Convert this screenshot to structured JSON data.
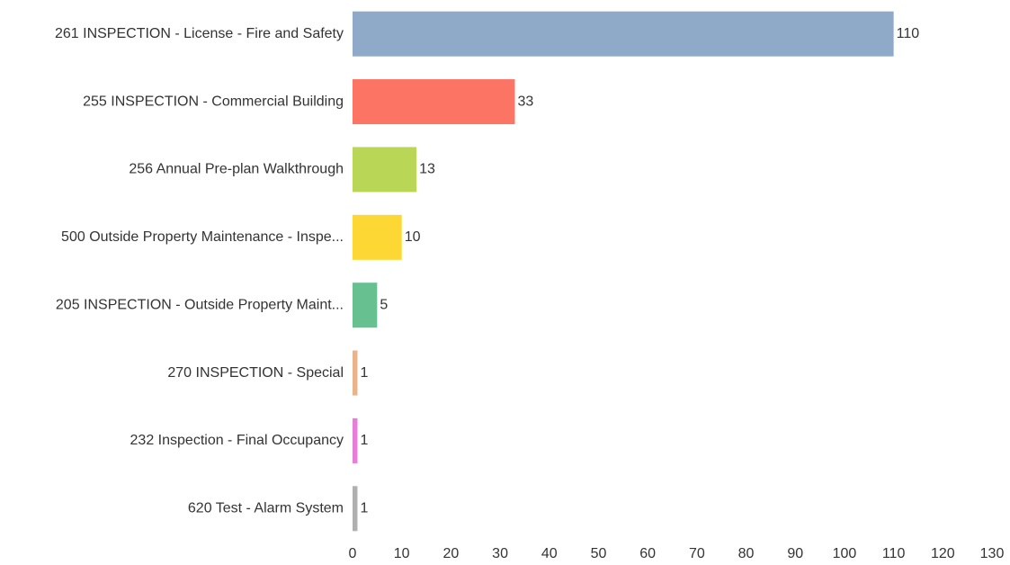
{
  "chart_data": {
    "type": "bar",
    "orientation": "horizontal",
    "categories": [
      "261 INSPECTION - License - Fire and Safety",
      "255 INSPECTION - Commercial Building",
      "256 Annual Pre-plan Walkthrough",
      "500 Outside Property Maintenance - Inspe...",
      "205 INSPECTION - Outside Property Maint...",
      "270 INSPECTION - Special",
      "232 Inspection - Final Occupancy",
      "620 Test - Alarm System"
    ],
    "values": [
      110,
      33,
      13,
      10,
      5,
      1,
      1,
      1
    ],
    "colors": [
      "#8eaac8",
      "#fc7564",
      "#b9d657",
      "#fdd835",
      "#66c08f",
      "#e8b48b",
      "#e87fd6",
      "#b0b0b0"
    ],
    "xlim": [
      0,
      130
    ],
    "xticks": [
      0,
      10,
      20,
      30,
      40,
      50,
      60,
      70,
      80,
      90,
      100,
      110,
      120,
      130
    ],
    "grid": false
  }
}
